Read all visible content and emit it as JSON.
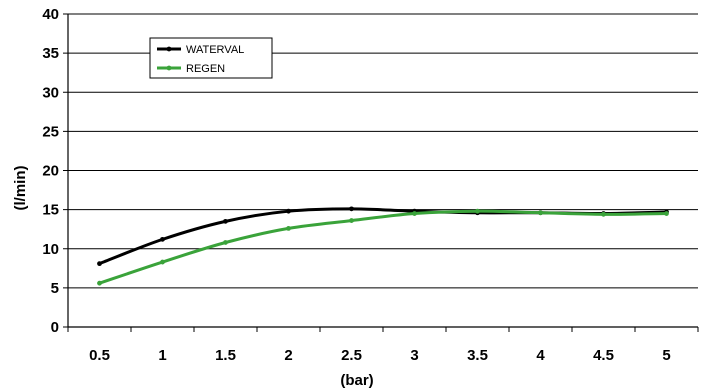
{
  "chart_data": {
    "type": "line",
    "title": "",
    "xlabel": "(bar)",
    "ylabel": "(l/min)",
    "categories": [
      "0.5",
      "1",
      "1.5",
      "2",
      "2.5",
      "3",
      "3.5",
      "4",
      "4.5",
      "5"
    ],
    "yticks": [
      "0",
      "5",
      "10",
      "15",
      "20",
      "25",
      "30",
      "35",
      "40"
    ],
    "ylim": [
      0,
      40
    ],
    "grid": true,
    "legend_position": "top-left",
    "series": [
      {
        "name": "WATERVAL",
        "color": "#000000",
        "values": [
          8.1,
          11.2,
          13.5,
          14.8,
          15.1,
          14.8,
          14.6,
          14.6,
          14.5,
          14.7
        ]
      },
      {
        "name": "REGEN",
        "color": "#3aa33a",
        "values": [
          5.6,
          8.3,
          10.8,
          12.6,
          13.6,
          14.5,
          14.8,
          14.6,
          14.4,
          14.5
        ]
      }
    ]
  }
}
